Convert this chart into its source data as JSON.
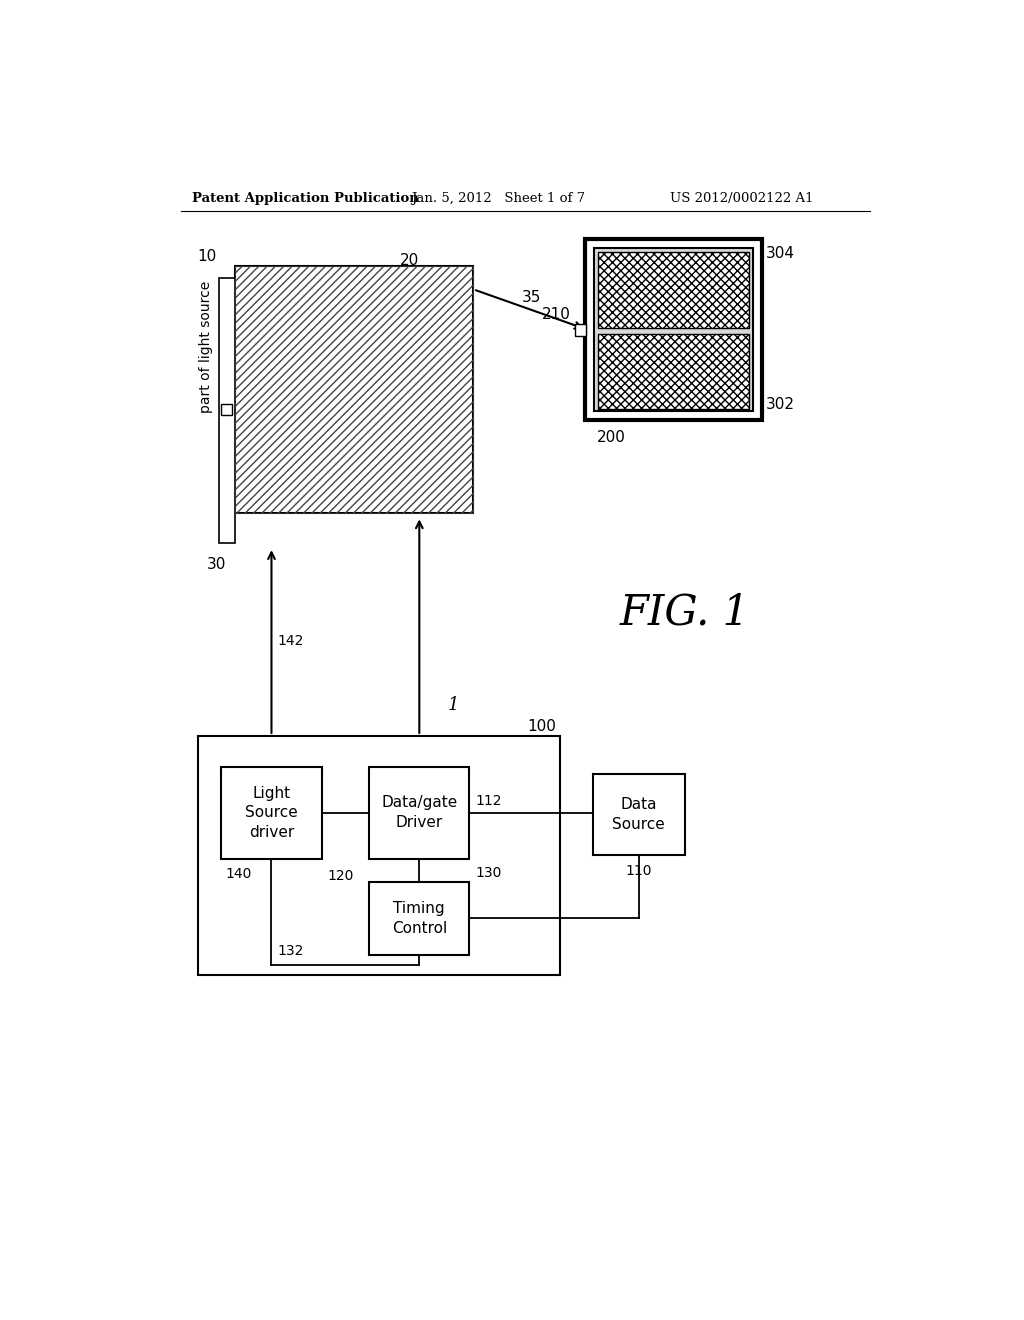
{
  "bg_color": "#ffffff",
  "header_left": "Patent Application Publication",
  "header_mid": "Jan. 5, 2012   Sheet 1 of 7",
  "header_right": "US 2012/0002122 A1",
  "fig_label": "FIG. 1",
  "label_1": "1",
  "label_10": "10",
  "label_20": "20",
  "label_30": "30",
  "label_35": "35",
  "label_100": "100",
  "label_110": "110",
  "label_112": "112",
  "label_120": "120",
  "label_130": "130",
  "label_132": "132",
  "label_140": "140",
  "label_142": "142",
  "label_200": "200",
  "label_210": "210",
  "label_302": "302",
  "label_304": "304",
  "text_part_of_light_source": "part of light source",
  "text_light_source_driver": "Light\nSource\ndriver",
  "text_data_gate_driver": "Data/gate\nDriver",
  "text_timing_control": "Timing\nControl",
  "text_data_source": "Data\nSource"
}
